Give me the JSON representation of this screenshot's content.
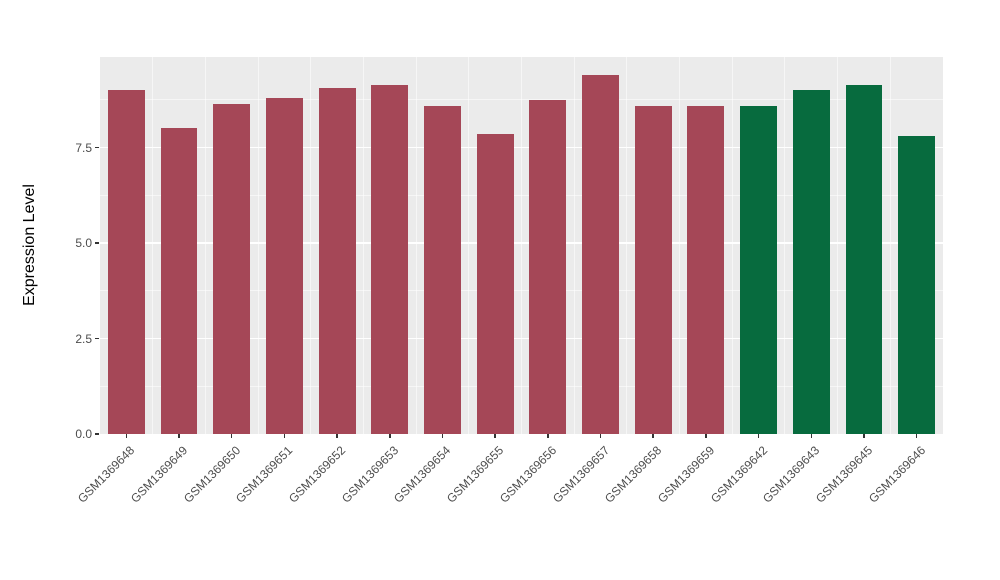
{
  "chart_data": {
    "type": "bar",
    "title": "",
    "xlabel": "",
    "ylabel": "Expression Level",
    "categories": [
      "GSM1369648",
      "GSM1369649",
      "GSM1369650",
      "GSM1369651",
      "GSM1369652",
      "GSM1369653",
      "GSM1369654",
      "GSM1369655",
      "GSM1369656",
      "GSM1369657",
      "GSM1369658",
      "GSM1369659",
      "GSM1369642",
      "GSM1369643",
      "GSM1369645",
      "GSM1369646"
    ],
    "values": [
      9.0,
      8.0,
      8.65,
      8.8,
      9.05,
      9.15,
      8.6,
      7.85,
      8.75,
      9.4,
      8.6,
      8.6,
      8.6,
      9.0,
      9.15,
      7.8
    ],
    "colors": [
      "#A54757",
      "#A54757",
      "#A54757",
      "#A54757",
      "#A54757",
      "#A54757",
      "#A54757",
      "#A54757",
      "#A54757",
      "#A54757",
      "#A54757",
      "#A54757",
      "#076B3E",
      "#076B3E",
      "#076B3E",
      "#076B3E"
    ],
    "ylim": [
      0,
      9.87
    ],
    "yticks": [
      0.0,
      2.5,
      5.0,
      7.5
    ],
    "ytick_labels": [
      "0.0",
      "2.5",
      "5.0",
      "7.5"
    ],
    "yticks_minor": [
      1.25,
      3.75,
      6.25,
      8.75
    ],
    "grid": true,
    "legend": "none",
    "panel_background": "#EBEBEB",
    "outer_background": "#FFFFFF",
    "bar_width_fraction": 0.7
  }
}
